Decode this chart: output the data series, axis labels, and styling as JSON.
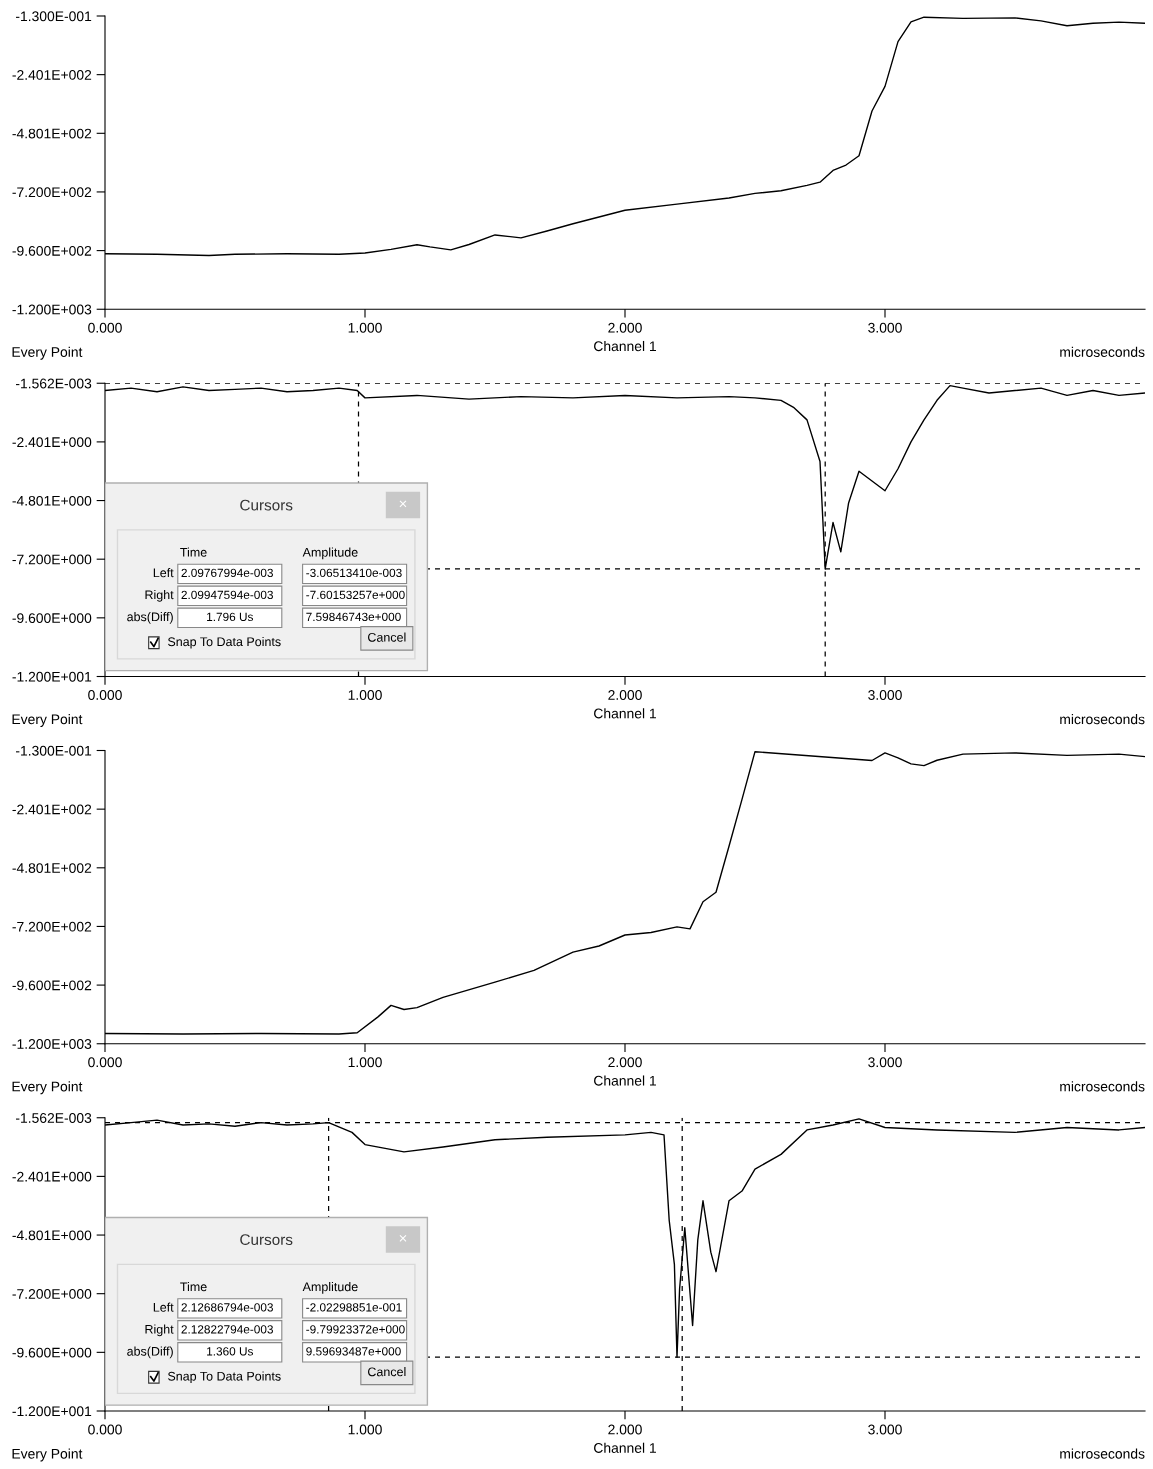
{
  "chart_data": [
    {
      "type": "line",
      "xlabel": "Channel 1",
      "annotations": [
        "Every Point",
        "microseconds"
      ],
      "xlim": [
        0,
        4.0
      ],
      "xticks": [
        {
          "value": 0,
          "label": "0.000"
        },
        {
          "value": 1,
          "label": "1.000"
        },
        {
          "value": 2,
          "label": "2.000"
        },
        {
          "value": 3,
          "label": "3.000"
        }
      ],
      "ylim": [
        -1200,
        -0.13
      ],
      "yticks": [
        {
          "value": -0.13,
          "label": "-1.300E-001"
        },
        {
          "value": -240.1,
          "label": "-2.401E+002"
        },
        {
          "value": -480.1,
          "label": "-4.801E+002"
        },
        {
          "value": -720.0,
          "label": "-7.200E+002"
        },
        {
          "value": -960.0,
          "label": "-9.600E+002"
        },
        {
          "value": -1200,
          "label": "-1.200E+003"
        }
      ],
      "grid": false,
      "line_style": "solid",
      "marker": "none",
      "series": [
        {
          "color": "#000000",
          "x": [
            0,
            0.2,
            0.4,
            0.5,
            0.7,
            0.9,
            1.0,
            1.1,
            1.2,
            1.25,
            1.33,
            1.4,
            1.5,
            1.6,
            1.7,
            1.8,
            2.0,
            2.2,
            2.4,
            2.5,
            2.6,
            2.7,
            2.75,
            2.8,
            2.85,
            2.9,
            2.95,
            3.0,
            3.05,
            3.1,
            3.15,
            3.3,
            3.5,
            3.6,
            3.7,
            3.8,
            3.9,
            4.0
          ],
          "values": [
            -973,
            -975,
            -980,
            -975,
            -973,
            -975,
            -970,
            -955,
            -936,
            -945,
            -957,
            -935,
            -896,
            -908,
            -880,
            -850,
            -795,
            -770,
            -745,
            -726,
            -715,
            -693,
            -680,
            -632,
            -610,
            -572,
            -389,
            -288,
            -105,
            -24,
            -5,
            -10,
            -8,
            -20,
            -40,
            -30,
            -25,
            -30
          ]
        }
      ]
    },
    {
      "type": "line",
      "xlabel": "Channel 1",
      "annotations": [
        "Every Point",
        "microseconds",
        "Cursors",
        "×",
        "Time",
        "Amplitude",
        "Left",
        "Right",
        "abs(Diff)",
        "2.09767994e-003",
        "2.09947594e-003",
        "1.796 Us",
        "-3.06513410e-003",
        "-7.60153257e+000",
        "7.59846743e+000",
        "Snap To Data Points",
        "Cancel"
      ],
      "xlim": [
        0,
        4.0
      ],
      "xticks": [
        {
          "value": 0,
          "label": "0.000"
        },
        {
          "value": 1,
          "label": "1.000"
        },
        {
          "value": 2,
          "label": "2.000"
        },
        {
          "value": 3,
          "label": "3.000"
        }
      ],
      "ylim": [
        -12,
        -0.001562
      ],
      "yticks": [
        {
          "value": -0.001562,
          "label": "-1.562E-003"
        },
        {
          "value": -2.401,
          "label": "-2.401E+000"
        },
        {
          "value": -4.801,
          "label": "-4.801E+000"
        },
        {
          "value": -7.2,
          "label": "-7.200E+000"
        },
        {
          "value": -9.6,
          "label": "-9.600E+000"
        },
        {
          "value": -12,
          "label": "-1.200E+001"
        }
      ],
      "grid": false,
      "line_style": "solid",
      "marker": "none",
      "ref_lines": [
        {
          "axis": "x",
          "value": 0.975,
          "line_style": "dashed"
        },
        {
          "axis": "x",
          "value": 2.77,
          "line_style": "dashed"
        },
        {
          "axis": "y",
          "value": -0.003,
          "line_style": "dashed"
        },
        {
          "axis": "y",
          "value": -7.6,
          "line_style": "dashed"
        }
      ],
      "series": [
        {
          "color": "#000000",
          "x": [
            0,
            0.1,
            0.2,
            0.3,
            0.4,
            0.5,
            0.6,
            0.7,
            0.8,
            0.9,
            0.97,
            1.0,
            1.2,
            1.4,
            1.6,
            1.8,
            2.0,
            2.2,
            2.4,
            2.5,
            2.6,
            2.65,
            2.7,
            2.75,
            2.77,
            2.8,
            2.83,
            2.86,
            2.9,
            2.95,
            3.0,
            3.05,
            3.1,
            3.15,
            3.2,
            3.25,
            3.3,
            3.4,
            3.5,
            3.6,
            3.7,
            3.8,
            3.9,
            4.0
          ],
          "values": [
            -0.3,
            -0.2,
            -0.35,
            -0.15,
            -0.3,
            -0.25,
            -0.2,
            -0.35,
            -0.3,
            -0.2,
            -0.3,
            -0.6,
            -0.5,
            -0.65,
            -0.55,
            -0.6,
            -0.5,
            -0.6,
            -0.55,
            -0.6,
            -0.7,
            -1.0,
            -1.5,
            -3.2,
            -7.6,
            -5.7,
            -6.9,
            -4.9,
            -3.6,
            -4.0,
            -4.4,
            -3.5,
            -2.4,
            -1.5,
            -0.7,
            -0.1,
            -0.2,
            -0.4,
            -0.3,
            -0.2,
            -0.5,
            -0.3,
            -0.5,
            -0.4
          ]
        }
      ]
    },
    {
      "type": "line",
      "xlabel": "Channel 1",
      "annotations": [
        "Every Point",
        "microseconds"
      ],
      "xlim": [
        0,
        4.0
      ],
      "xticks": [
        {
          "value": 0,
          "label": "0.000"
        },
        {
          "value": 1,
          "label": "1.000"
        },
        {
          "value": 2,
          "label": "2.000"
        },
        {
          "value": 3,
          "label": "3.000"
        }
      ],
      "ylim": [
        -1200,
        -0.13
      ],
      "yticks": [
        {
          "value": -0.13,
          "label": "-1.300E-001"
        },
        {
          "value": -240.1,
          "label": "-2.401E+002"
        },
        {
          "value": -480.1,
          "label": "-4.801E+002"
        },
        {
          "value": -720.0,
          "label": "-7.200E+002"
        },
        {
          "value": -960.0,
          "label": "-9.600E+002"
        },
        {
          "value": -1200,
          "label": "-1.200E+003"
        }
      ],
      "grid": false,
      "line_style": "solid",
      "marker": "none",
      "series": [
        {
          "color": "#000000",
          "x": [
            0,
            0.3,
            0.6,
            0.9,
            0.97,
            1.05,
            1.1,
            1.15,
            1.2,
            1.3,
            1.5,
            1.65,
            1.8,
            1.9,
            2.0,
            2.1,
            2.2,
            2.25,
            2.3,
            2.35,
            2.4,
            2.45,
            2.5,
            2.95,
            3.0,
            3.05,
            3.1,
            3.15,
            3.2,
            3.3,
            3.5,
            3.7,
            3.9,
            4.0
          ],
          "values": [
            -1158,
            -1160,
            -1158,
            -1160,
            -1155,
            -1090,
            -1043,
            -1060,
            -1052,
            -1010,
            -948,
            -900,
            -825,
            -800,
            -755,
            -745,
            -722,
            -730,
            -619,
            -580,
            -392,
            -200,
            -5,
            -41,
            -10,
            -30,
            -55,
            -62,
            -40,
            -15,
            -10,
            -20,
            -15,
            -25
          ]
        }
      ]
    },
    {
      "type": "line",
      "xlabel": "Channel 1",
      "annotations": [
        "Every Point",
        "microseconds",
        "Cursors",
        "×",
        "Time",
        "Amplitude",
        "Left",
        "Right",
        "abs(Diff)",
        "2.12686794e-003",
        "2.12822794e-003",
        "1.360 Us",
        "-2.02298851e-001",
        "-9.79923372e+000",
        "9.59693487e+000",
        "Snap To Data Points",
        "Cancel"
      ],
      "xlim": [
        0,
        4.0
      ],
      "xticks": [
        {
          "value": 0,
          "label": "0.000"
        },
        {
          "value": 1,
          "label": "1.000"
        },
        {
          "value": 2,
          "label": "2.000"
        },
        {
          "value": 3,
          "label": "3.000"
        }
      ],
      "ylim": [
        -12,
        -0.001562
      ],
      "yticks": [
        {
          "value": -0.001562,
          "label": "-1.562E-003"
        },
        {
          "value": -2.401,
          "label": "-2.401E+000"
        },
        {
          "value": -4.801,
          "label": "-4.801E+000"
        },
        {
          "value": -7.2,
          "label": "-7.200E+000"
        },
        {
          "value": -9.6,
          "label": "-9.600E+000"
        },
        {
          "value": -12,
          "label": "-1.200E+001"
        }
      ],
      "grid": false,
      "line_style": "solid",
      "marker": "none",
      "ref_lines": [
        {
          "axis": "x",
          "value": 0.86,
          "line_style": "dashed"
        },
        {
          "axis": "x",
          "value": 2.22,
          "line_style": "dashed"
        },
        {
          "axis": "y",
          "value": -0.2,
          "line_style": "dashed"
        },
        {
          "axis": "y",
          "value": -9.8,
          "line_style": "dashed"
        }
      ],
      "series": [
        {
          "color": "#000000",
          "x": [
            0,
            0.1,
            0.2,
            0.3,
            0.4,
            0.5,
            0.6,
            0.7,
            0.8,
            0.86,
            0.95,
            1.0,
            1.15,
            1.3,
            1.5,
            1.7,
            2.0,
            2.1,
            2.15,
            2.17,
            2.19,
            2.2,
            2.21,
            2.23,
            2.26,
            2.28,
            2.3,
            2.33,
            2.35,
            2.4,
            2.45,
            2.5,
            2.6,
            2.7,
            2.8,
            2.9,
            3.0,
            3.2,
            3.5,
            3.7,
            3.9,
            4.0
          ],
          "values": [
            -0.3,
            -0.2,
            -0.1,
            -0.3,
            -0.25,
            -0.35,
            -0.2,
            -0.3,
            -0.25,
            -0.2,
            -0.6,
            -1.1,
            -1.4,
            -1.2,
            -0.9,
            -0.8,
            -0.7,
            -0.6,
            -0.7,
            -4.2,
            -6.0,
            -9.8,
            -7.0,
            -4.5,
            -8.5,
            -5.0,
            -3.4,
            -5.5,
            -6.3,
            -3.4,
            -3.0,
            -2.1,
            -1.5,
            -0.5,
            -0.3,
            -0.05,
            -0.4,
            -0.5,
            -0.6,
            -0.4,
            -0.5,
            -0.4
          ]
        }
      ]
    }
  ]
}
